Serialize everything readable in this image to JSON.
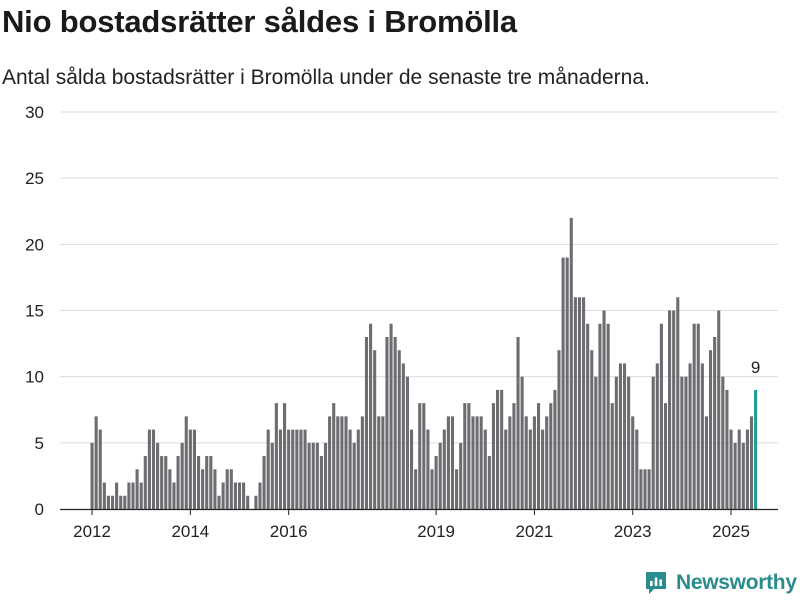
{
  "title": "Nio bostadsrätter såldes i Bromölla",
  "subtitle": "Antal sålda bostadsrätter i Bromölla under de senaste tre månaderna.",
  "logo_text": "Newsworthy",
  "colors": {
    "bar": "#6d6c71",
    "highlight": "#1f9e96",
    "grid": "#dcdcdc",
    "text": "#222222",
    "brand": "#2a8c8c"
  },
  "chart_data": {
    "type": "bar",
    "start_month": "2012-01",
    "ylim": [
      0,
      30
    ],
    "yticks": [
      0,
      5,
      10,
      15,
      20,
      25,
      30
    ],
    "xticks": [
      "2012",
      "2014",
      "2016",
      "2019",
      "2021",
      "2023",
      "2025"
    ],
    "highlight_label": "9",
    "values": [
      5,
      7,
      6,
      2,
      1,
      1,
      2,
      1,
      1,
      2,
      2,
      3,
      2,
      4,
      6,
      6,
      5,
      4,
      4,
      3,
      2,
      4,
      5,
      7,
      6,
      6,
      4,
      3,
      4,
      4,
      3,
      1,
      2,
      3,
      3,
      2,
      2,
      2,
      1,
      0,
      1,
      2,
      4,
      6,
      5,
      8,
      6,
      8,
      6,
      6,
      6,
      6,
      6,
      5,
      5,
      5,
      4,
      5,
      7,
      8,
      7,
      7,
      7,
      6,
      5,
      6,
      7,
      13,
      14,
      12,
      7,
      7,
      13,
      14,
      13,
      12,
      11,
      10,
      6,
      3,
      8,
      8,
      6,
      3,
      4,
      5,
      6,
      7,
      7,
      3,
      5,
      8,
      8,
      7,
      7,
      7,
      6,
      4,
      8,
      9,
      9,
      6,
      7,
      8,
      13,
      10,
      7,
      6,
      7,
      8,
      6,
      7,
      8,
      9,
      12,
      19,
      19,
      22,
      16,
      16,
      16,
      14,
      12,
      10,
      14,
      15,
      14,
      8,
      10,
      11,
      11,
      10,
      7,
      6,
      3,
      3,
      3,
      10,
      11,
      14,
      8,
      15,
      15,
      16,
      10,
      10,
      11,
      14,
      14,
      11,
      7,
      12,
      13,
      15,
      10,
      9,
      6,
      5,
      6,
      5,
      6,
      7,
      9
    ]
  }
}
